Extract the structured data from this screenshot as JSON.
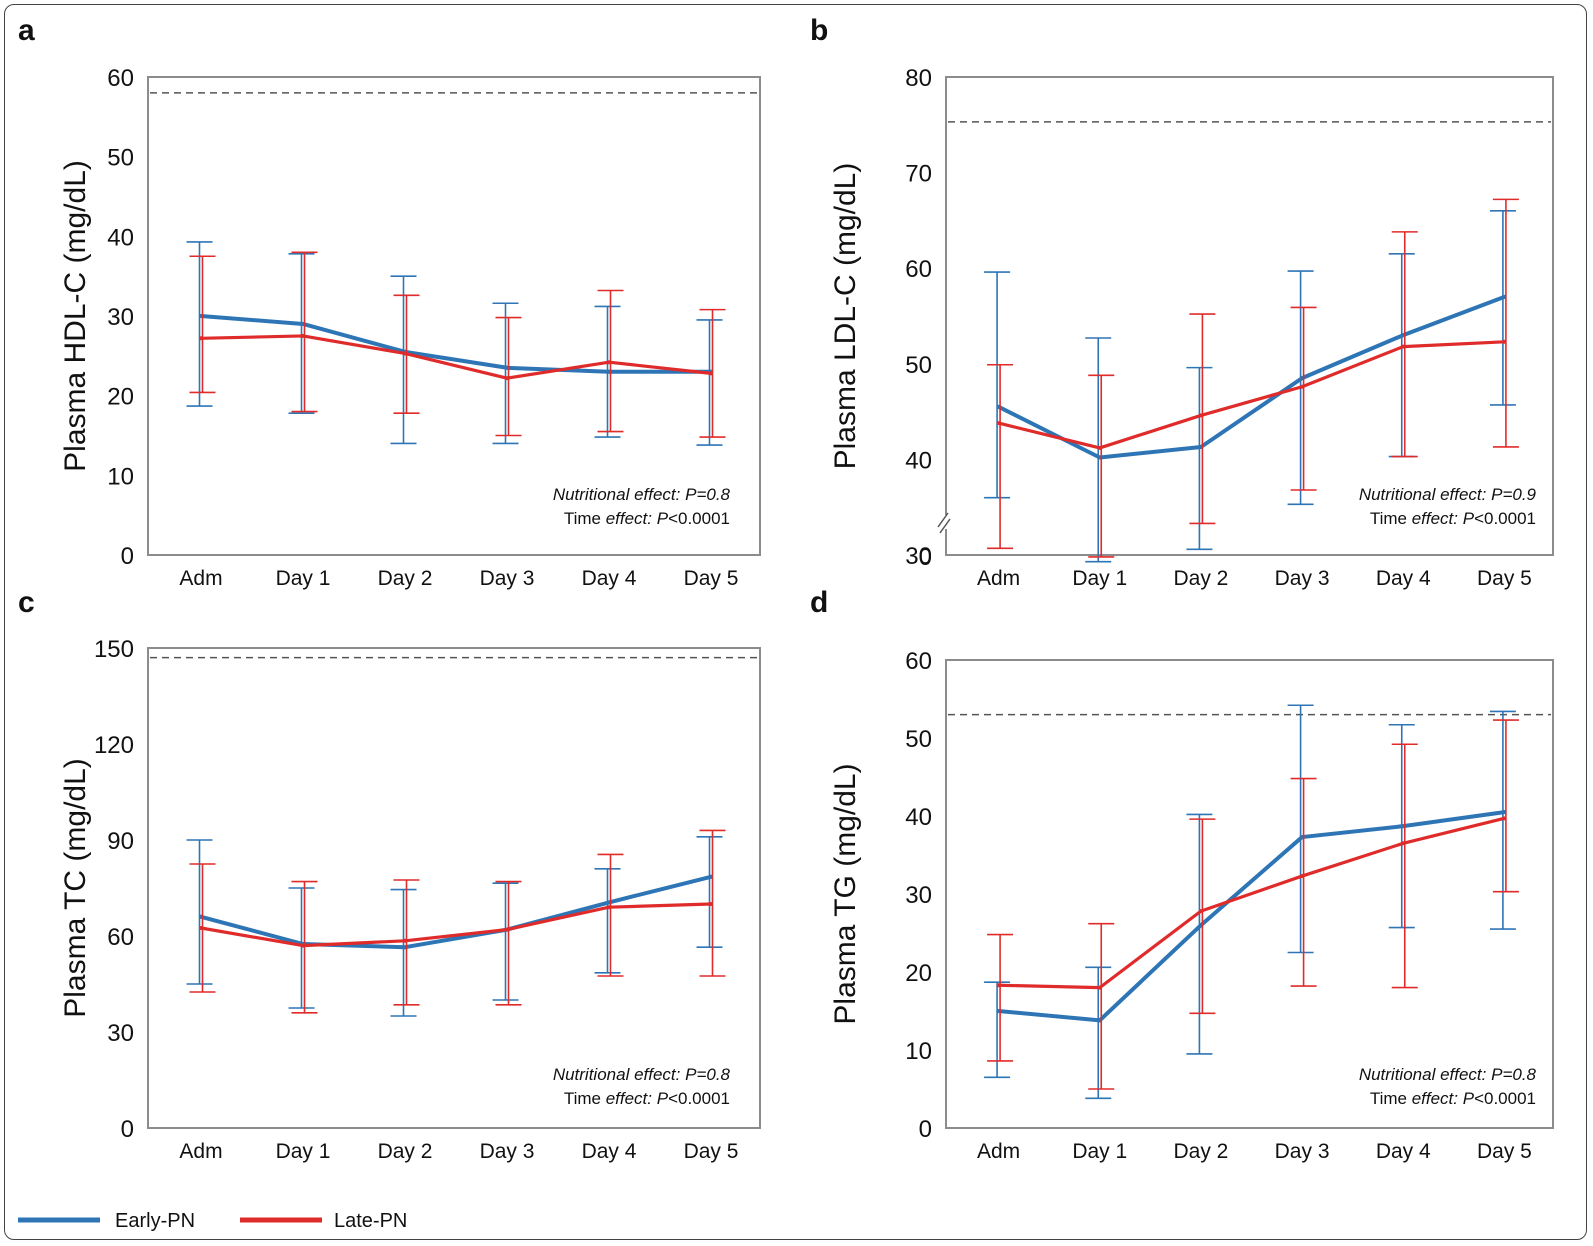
{
  "legend": [
    {
      "name": "Early-PN",
      "color": "#2e75b6"
    },
    {
      "name": "Late-PN",
      "color": "#e02b2b"
    }
  ],
  "colors": {
    "early": "#2e75b6",
    "late": "#e02b2b",
    "reference": "#555555",
    "axis": "#8c8c8c"
  },
  "chart_data": [
    {
      "panel": "a",
      "type": "line",
      "ylabel": "Plasma HDL-C (mg/dL)",
      "categories": [
        "Adm",
        "Day 1",
        "Day 2",
        "Day 3",
        "Day 4",
        "Day 5"
      ],
      "ylim": [
        0,
        60
      ],
      "yticks": [
        0,
        10,
        20,
        30,
        40,
        50,
        60
      ],
      "reference_line": 58,
      "series": [
        {
          "name": "Early-PN",
          "values": [
            30,
            29,
            25.5,
            23.5,
            23,
            23
          ],
          "err_low": [
            18.7,
            17.8,
            14,
            14,
            14.8,
            13.8
          ],
          "err_high": [
            39.3,
            37.8,
            35,
            31.6,
            31.2,
            29.5
          ]
        },
        {
          "name": "Late-PN",
          "values": [
            27.2,
            27.5,
            25.3,
            22.2,
            24.2,
            22.8
          ],
          "err_low": [
            20.4,
            18,
            17.8,
            15,
            15.5,
            14.8
          ],
          "err_high": [
            37.5,
            38,
            32.6,
            29.8,
            33.2,
            30.8
          ]
        }
      ],
      "notes": [
        {
          "label": "Nutritional effect: ",
          "p": "P",
          "value": "=0.8"
        },
        {
          "label": "Time ",
          "label_i": "effect:",
          "p": "P",
          "value": "<0.0001"
        }
      ]
    },
    {
      "panel": "b",
      "type": "line",
      "ylabel": "Plasma LDL-C (mg/dL)",
      "categories": [
        "Adm",
        "Day 1",
        "Day 2",
        "Day 3",
        "Day 4",
        "Day 5"
      ],
      "ylim": [
        30,
        80
      ],
      "yticks": [
        30,
        40,
        50,
        60,
        70,
        80
      ],
      "axis_break_label": "0",
      "reference_line": 75.3,
      "series": [
        {
          "name": "Early-PN",
          "values": [
            45.5,
            40.2,
            41.3,
            48.5,
            53,
            57
          ],
          "err_low": [
            36,
            29.3,
            30.6,
            35.3,
            40.3,
            45.7
          ],
          "err_high": [
            59.6,
            52.7,
            49.6,
            59.7,
            61.5,
            66
          ]
        },
        {
          "name": "Late-PN",
          "values": [
            43.8,
            41.2,
            44.6,
            47.6,
            51.8,
            52.3
          ],
          "err_low": [
            30.7,
            29.8,
            33.3,
            36.8,
            40.3,
            41.3
          ],
          "err_high": [
            49.9,
            48.8,
            55.2,
            55.9,
            63.8,
            67.2
          ]
        }
      ],
      "notes": [
        {
          "label": "Nutritional effect: ",
          "p": "P",
          "value": "=0.9"
        },
        {
          "label": "Time ",
          "label_i": "effect:",
          "p": "P",
          "value": "<0.0001"
        }
      ]
    },
    {
      "panel": "c",
      "type": "line",
      "ylabel": "Plasma TC (mg/dL)",
      "categories": [
        "Adm",
        "Day 1",
        "Day 2",
        "Day 3",
        "Day 4",
        "Day 5"
      ],
      "ylim": [
        0,
        150
      ],
      "yticks": [
        0,
        30,
        60,
        90,
        120,
        150
      ],
      "reference_line": 147,
      "series": [
        {
          "name": "Early-PN",
          "values": [
            66,
            57.5,
            56.5,
            62,
            70.5,
            78.5
          ],
          "err_low": [
            45,
            37.5,
            35,
            40,
            48.5,
            56.5
          ],
          "err_high": [
            90,
            75,
            74.5,
            76.5,
            81,
            91
          ]
        },
        {
          "name": "Late-PN",
          "values": [
            62.5,
            57,
            58.5,
            62,
            69,
            70
          ],
          "err_low": [
            42.5,
            36,
            38.5,
            38.5,
            47.5,
            47.5
          ],
          "err_high": [
            82.5,
            77,
            77.5,
            77,
            85.5,
            93
          ]
        }
      ],
      "notes": [
        {
          "label": "Nutritional effect: ",
          "p": "P",
          "value": "=0.8"
        },
        {
          "label": "Time ",
          "label_i": "effect:",
          "p": "P",
          "value": "<0.0001"
        }
      ]
    },
    {
      "panel": "d",
      "type": "line",
      "ylabel": "Plasma TG (mg/dL)",
      "categories": [
        "Adm",
        "Day 1",
        "Day 2",
        "Day 3",
        "Day 4",
        "Day 5"
      ],
      "ylim": [
        0,
        60
      ],
      "yticks": [
        0,
        10,
        20,
        30,
        40,
        50,
        60
      ],
      "reference_line": 53,
      "series": [
        {
          "name": "Early-PN",
          "values": [
            15,
            13.8,
            26,
            37.3,
            38.7,
            40.5
          ],
          "err_low": [
            6.5,
            3.8,
            9.5,
            22.5,
            25.7,
            25.5
          ],
          "err_high": [
            18.7,
            20.6,
            40.2,
            54.2,
            51.7,
            53.4
          ]
        },
        {
          "name": "Late-PN",
          "values": [
            18.3,
            18,
            27.8,
            32.3,
            36.5,
            39.7
          ],
          "err_low": [
            8.6,
            5,
            14.7,
            18.2,
            18,
            30.3
          ],
          "err_high": [
            24.8,
            26.2,
            39.6,
            44.8,
            49.2,
            52.3
          ]
        }
      ],
      "notes": [
        {
          "label": "Nutritional effect: ",
          "p": "P",
          "value": "=0.8"
        },
        {
          "label": "Time ",
          "label_i": "effect:",
          "p": "P",
          "value": "<0.0001"
        }
      ]
    }
  ]
}
